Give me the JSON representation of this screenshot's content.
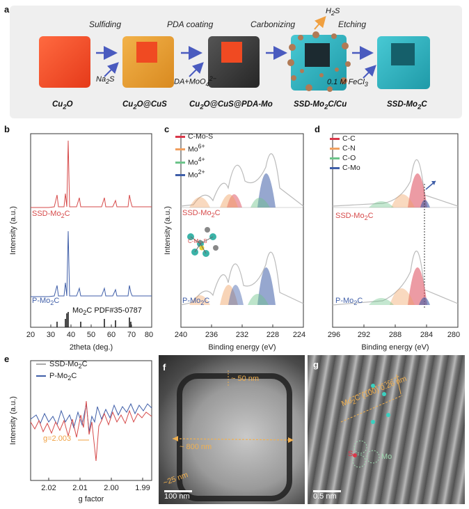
{
  "panel_a": {
    "letter": "a",
    "steps": [
      "Sulfiding",
      "PDA coating",
      "Carbonizing",
      "Etching"
    ],
    "reagents": {
      "na2s": {
        "main": "Na",
        "sub": "2",
        "tail": "S"
      },
      "da": {
        "main": "DA+MoO",
        "sub": "4",
        "sup": "2−"
      },
      "h2s": {
        "main": "H",
        "sub": "2",
        "tail": "S"
      },
      "fecl3": {
        "main": "0.1 M FeCl",
        "sub": "3"
      }
    },
    "cubes": [
      {
        "main": "Cu",
        "sub": "2",
        "tail": "O"
      },
      {
        "main": "Cu",
        "sub": "2",
        "tail": "O@CuS"
      },
      {
        "main": "Cu",
        "sub": "2",
        "tail": "O@CuS@PDA-Mo"
      },
      {
        "main": "SSD-Mo",
        "sub": "2",
        "tail": "C/Cu"
      },
      {
        "main": "SSD-Mo",
        "sub": "2",
        "tail": "C"
      }
    ],
    "colors": {
      "cu2o": "#ee4c2a",
      "cus": "#e8a236",
      "pda": "#3a3a3a",
      "mo2c": "#2fb7c4",
      "arrow": "#4a5bbf"
    }
  },
  "panel_b": {
    "letter": "b",
    "ylabel": "Intensity (a.u.)",
    "xlabel": "2theta (deg.)",
    "xticks": [
      "20",
      "30",
      "40",
      "50",
      "60",
      "70",
      "80"
    ],
    "label_ssd": {
      "main": "SSD-Mo",
      "sub": "2",
      "tail": "C"
    },
    "label_p": {
      "main": "P-Mo",
      "sub": "2",
      "tail": "C"
    },
    "label_pdf": {
      "main": "Mo",
      "sub": "2",
      "tail": "C PDF#35-0787"
    }
  },
  "panel_c": {
    "letter": "c",
    "ylabel": "Intensity (a.u.)",
    "xlabel": "Binding energy (eV)",
    "xticks": [
      "240",
      "236",
      "232",
      "228",
      "224"
    ],
    "legend": [
      {
        "main": "C-Mo-S",
        "color": "#d9384a"
      },
      {
        "main": "Mo",
        "sup": "6+",
        "color": "#f0a060"
      },
      {
        "main": "Mo",
        "sup": "4+",
        "color": "#6cc48a"
      },
      {
        "main": "Mo",
        "sup": "2+",
        "color": "#3f5ea8"
      }
    ],
    "label_ssd": {
      "main": "SSD-Mo",
      "sub": "2",
      "tail": "C"
    },
    "label_p": {
      "main": "P-Mo",
      "sub": "2",
      "tail": "C"
    },
    "inset_label": "C-Mo-S"
  },
  "panel_d": {
    "letter": "d",
    "xlabel": "Binding energy (eV)",
    "xticks": [
      "296",
      "292",
      "288",
      "284",
      "280"
    ],
    "legend": [
      {
        "main": "C-C",
        "color": "#d9384a"
      },
      {
        "main": "C-N",
        "color": "#f0a060"
      },
      {
        "main": "C-O",
        "color": "#6cc48a"
      },
      {
        "main": "C-Mo",
        "color": "#3f5ea8"
      }
    ],
    "label_ssd": {
      "main": "SSD-Mo",
      "sub": "2",
      "tail": "C"
    },
    "label_p": {
      "main": "P-Mo",
      "sub": "2",
      "tail": "C"
    }
  },
  "panel_e": {
    "letter": "e",
    "ylabel": "Intensity (a.u.)",
    "xlabel": "g factor",
    "xticks": [
      "2.02",
      "2.01",
      "2.00",
      "1.99"
    ],
    "legend": [
      {
        "main": "SSD-Mo",
        "sub": "2",
        "tail": "C",
        "color": "#aaaaaa"
      },
      {
        "main": "P-Mo",
        "sub": "2",
        "tail": "C",
        "color": "#3f5ea8"
      }
    ],
    "annotation": "g=2.003"
  },
  "panel_f": {
    "letter": "f",
    "ann_50": "~ 50 nm",
    "ann_800": "~ 800 nm",
    "ann_25": "~25 nm",
    "scale": "100 nm"
  },
  "panel_g": {
    "letter": "g",
    "ann_lattice": {
      "main": "Mo",
      "sub": "2",
      "tail": "C (100) 0.26 nm"
    },
    "ann_s": "S",
    "ann_mo": "Mo",
    "scale": "0.5 nm"
  }
}
